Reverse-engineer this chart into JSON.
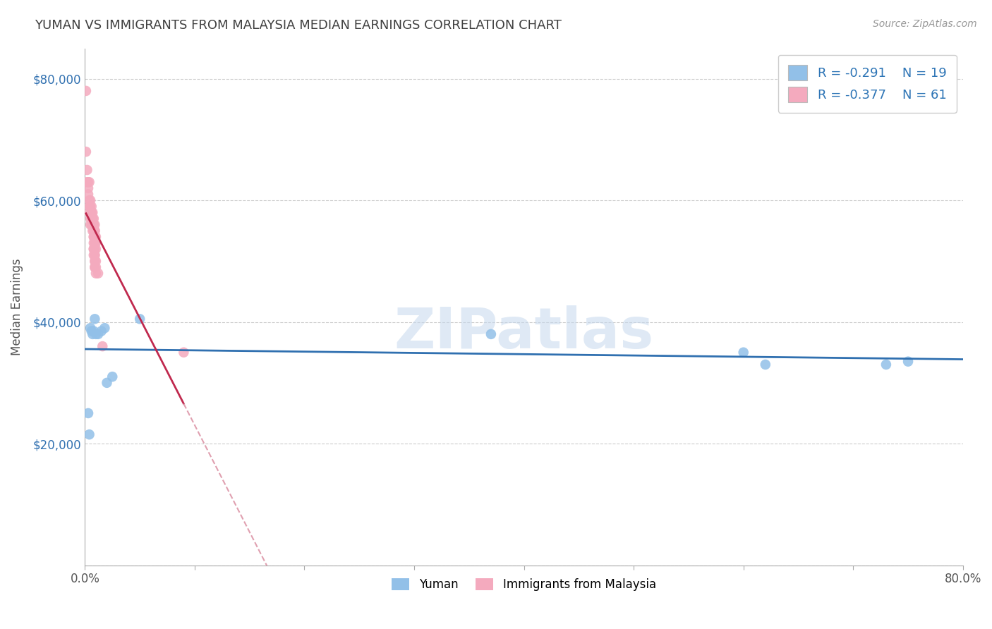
{
  "title": "YUMAN VS IMMIGRANTS FROM MALAYSIA MEDIAN EARNINGS CORRELATION CHART",
  "source": "Source: ZipAtlas.com",
  "xlabel": "",
  "ylabel": "Median Earnings",
  "xlim": [
    0.0,
    0.8
  ],
  "ylim": [
    0,
    85000
  ],
  "yticks": [
    0,
    20000,
    40000,
    60000,
    80000
  ],
  "ytick_labels": [
    "",
    "$20,000",
    "$40,000",
    "$60,000",
    "$80,000"
  ],
  "watermark": "ZIPatlas",
  "legend_blue_r": "-0.291",
  "legend_blue_n": "19",
  "legend_pink_r": "-0.377",
  "legend_pink_n": "61",
  "blue_color": "#92C0E8",
  "pink_color": "#F4AABE",
  "trend_blue_color": "#3070B0",
  "trend_pink_color": "#C0294E",
  "trend_pink_dashed_color": "#E0A0B0",
  "blue_scatter_x": [
    0.003,
    0.004,
    0.005,
    0.006,
    0.007,
    0.008,
    0.009,
    0.01,
    0.012,
    0.015,
    0.018,
    0.02,
    0.025,
    0.05,
    0.37,
    0.6,
    0.62,
    0.73,
    0.75
  ],
  "blue_scatter_y": [
    25000,
    21500,
    39000,
    38500,
    38000,
    38500,
    40500,
    38000,
    38000,
    38500,
    39000,
    30000,
    31000,
    40500,
    38000,
    35000,
    33000,
    33000,
    33500
  ],
  "pink_scatter_x": [
    0.001,
    0.001,
    0.002,
    0.002,
    0.003,
    0.003,
    0.003,
    0.004,
    0.004,
    0.004,
    0.004,
    0.005,
    0.005,
    0.005,
    0.005,
    0.006,
    0.006,
    0.006,
    0.006,
    0.006,
    0.007,
    0.007,
    0.007,
    0.007,
    0.007,
    0.007,
    0.008,
    0.008,
    0.008,
    0.008,
    0.008,
    0.008,
    0.008,
    0.008,
    0.008,
    0.008,
    0.008,
    0.008,
    0.009,
    0.009,
    0.009,
    0.009,
    0.009,
    0.009,
    0.009,
    0.009,
    0.009,
    0.009,
    0.009,
    0.009,
    0.009,
    0.009,
    0.01,
    0.01,
    0.01,
    0.01,
    0.01,
    0.01,
    0.012,
    0.016,
    0.09
  ],
  "pink_scatter_y": [
    78000,
    68000,
    65000,
    63000,
    63000,
    62000,
    61000,
    60000,
    63000,
    59000,
    58000,
    60000,
    59000,
    57000,
    56000,
    59000,
    58000,
    58000,
    57000,
    56000,
    58000,
    57000,
    57000,
    56000,
    56000,
    55000,
    57000,
    56000,
    56000,
    55000,
    55000,
    55000,
    54000,
    54000,
    53000,
    52000,
    52000,
    51000,
    56000,
    55000,
    55000,
    54000,
    54000,
    53000,
    53000,
    52000,
    51000,
    51000,
    50000,
    50000,
    49000,
    49000,
    54000,
    53000,
    52000,
    50000,
    49000,
    48000,
    48000,
    36000,
    35000
  ],
  "pink_line_x_start": 0.001,
  "pink_line_x_solid_end": 0.09,
  "pink_line_x_dashed_end": 0.175,
  "blue_line_x_start": 0.0,
  "blue_line_x_end": 0.8
}
